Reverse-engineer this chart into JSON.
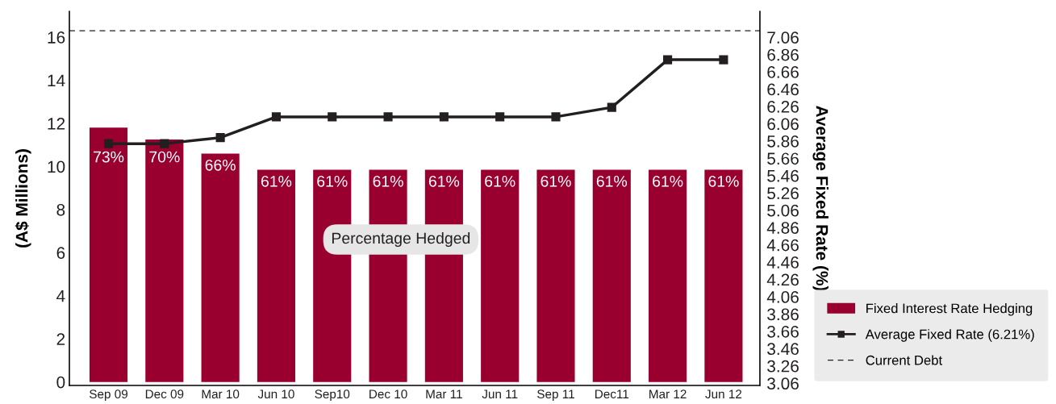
{
  "chart_data": {
    "type": "bar",
    "categories": [
      "Sep 09",
      "Dec 09",
      "Mar 10",
      "Jun 10",
      "Sep10",
      "Dec 10",
      "Mar 11",
      "Jun 11",
      "Sep 11",
      "Dec11",
      "Mar 12",
      "Jun 12"
    ],
    "ylabel": "(A$ Millions)",
    "y2label": "Average Fixed Rate (%)",
    "series": [
      {
        "name": "Fixed Interest Rate Hedging",
        "color": "#990030",
        "values": [
          11.8,
          11.25,
          10.6,
          9.85,
          9.85,
          9.85,
          9.85,
          9.85,
          9.85,
          9.85,
          9.85,
          9.85
        ]
      },
      {
        "name": "Average Fixed Rate (6.21%)",
        "type": "line",
        "axis": "y2",
        "color": "#231f20",
        "marker": "square",
        "line_style": "solid",
        "values": [
          5.83,
          5.83,
          5.9,
          6.14,
          6.14,
          6.14,
          6.14,
          6.14,
          6.14,
          6.25,
          6.8,
          6.8
        ]
      }
    ],
    "ref_lines": [
      {
        "axis": "y",
        "value": 16.3,
        "label": "Current Debt",
        "color": "#231f20",
        "line_style": "dashed"
      }
    ],
    "annotations": [
      "Percentage Hedged",
      {
        "text": "73%",
        "x": "Sep 09",
        "y": 11.8
      },
      {
        "text": "70%",
        "x": "Dec 09",
        "y": 11.25
      },
      {
        "text": "66%",
        "x": "Mar 10",
        "y": 10.6
      },
      {
        "text": "61%",
        "x": "Jun 10",
        "y": 9.85
      },
      {
        "text": "61%",
        "x": "Sep10",
        "y": 9.85
      },
      {
        "text": "61%",
        "x": "Dec 10",
        "y": 9.85
      },
      {
        "text": "61%",
        "x": "Mar 11",
        "y": 9.85
      },
      {
        "text": "61%",
        "x": "Jun 11",
        "y": 9.85
      },
      {
        "text": "61%",
        "x": "Sep 11",
        "y": 9.85
      },
      {
        "text": "61%",
        "x": "Dec11",
        "y": 9.85
      },
      {
        "text": "61%",
        "x": "Mar 12",
        "y": 9.85
      },
      {
        "text": "61%",
        "x": "Jun 12",
        "y": 9.85
      }
    ],
    "ylim": [
      -0.16,
      17.2
    ],
    "yticks": [
      0,
      2,
      4,
      6,
      8,
      10,
      12,
      14,
      16
    ],
    "y2lim": [
      3.035,
      7.36
    ],
    "y2ticks": [
      3.06,
      3.26,
      3.46,
      3.66,
      3.86,
      4.06,
      4.26,
      4.46,
      4.66,
      4.86,
      5.06,
      5.26,
      5.46,
      5.66,
      5.86,
      6.06,
      6.26,
      6.46,
      6.66,
      6.86,
      7.06
    ],
    "grid": false,
    "legend": "right"
  }
}
